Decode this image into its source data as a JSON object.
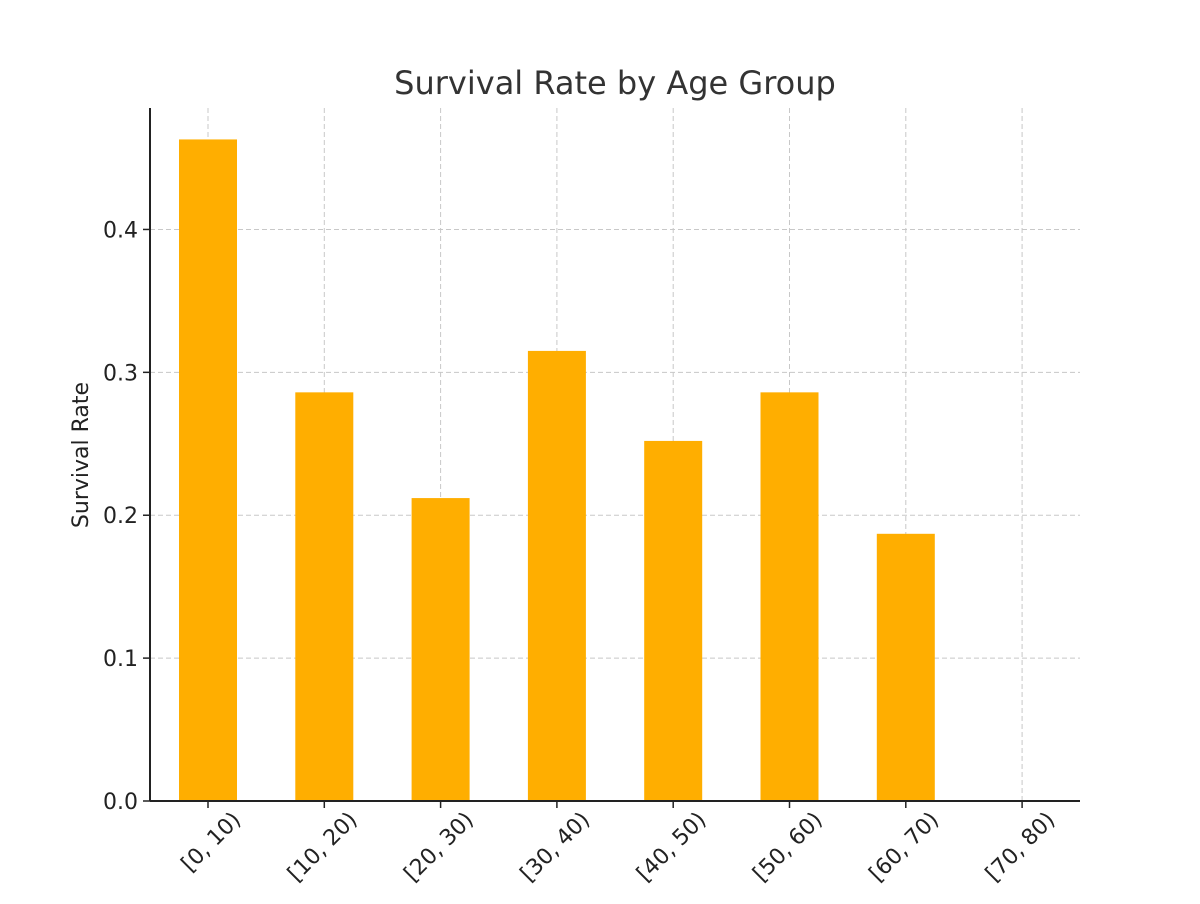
{
  "chart_data": {
    "type": "bar",
    "title": "Survival Rate by Age Group",
    "xlabel": "",
    "ylabel": "Survival Rate",
    "categories": [
      "[0, 10)",
      "[10, 20)",
      "[20, 30)",
      "[30, 40)",
      "[40, 50)",
      "[50, 60)",
      "[60, 70)",
      "[70, 80)"
    ],
    "values": [
      0.463,
      0.286,
      0.212,
      0.315,
      0.252,
      0.286,
      0.187,
      0.0
    ],
    "ylim": [
      0,
      0.485
    ],
    "yticks": [
      0.0,
      0.1,
      0.2,
      0.3,
      0.4
    ],
    "ytick_labels": [
      "0.0",
      "0.1",
      "0.2",
      "0.3",
      "0.4"
    ],
    "bar_color": "#FFAE00",
    "grid": true
  }
}
